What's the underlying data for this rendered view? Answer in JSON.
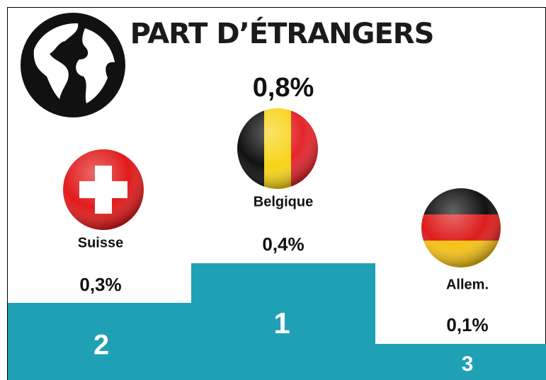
{
  "title": "PART D’ÉTRANGERS",
  "total": "0,8%",
  "podium": [
    {
      "rank": "2",
      "name": "Suisse",
      "value": "0,3%"
    },
    {
      "rank": "1",
      "name": "Belgique",
      "value": "0,4%"
    },
    {
      "rank": "3",
      "name": "Allem.",
      "value": "0,1%"
    }
  ]
}
